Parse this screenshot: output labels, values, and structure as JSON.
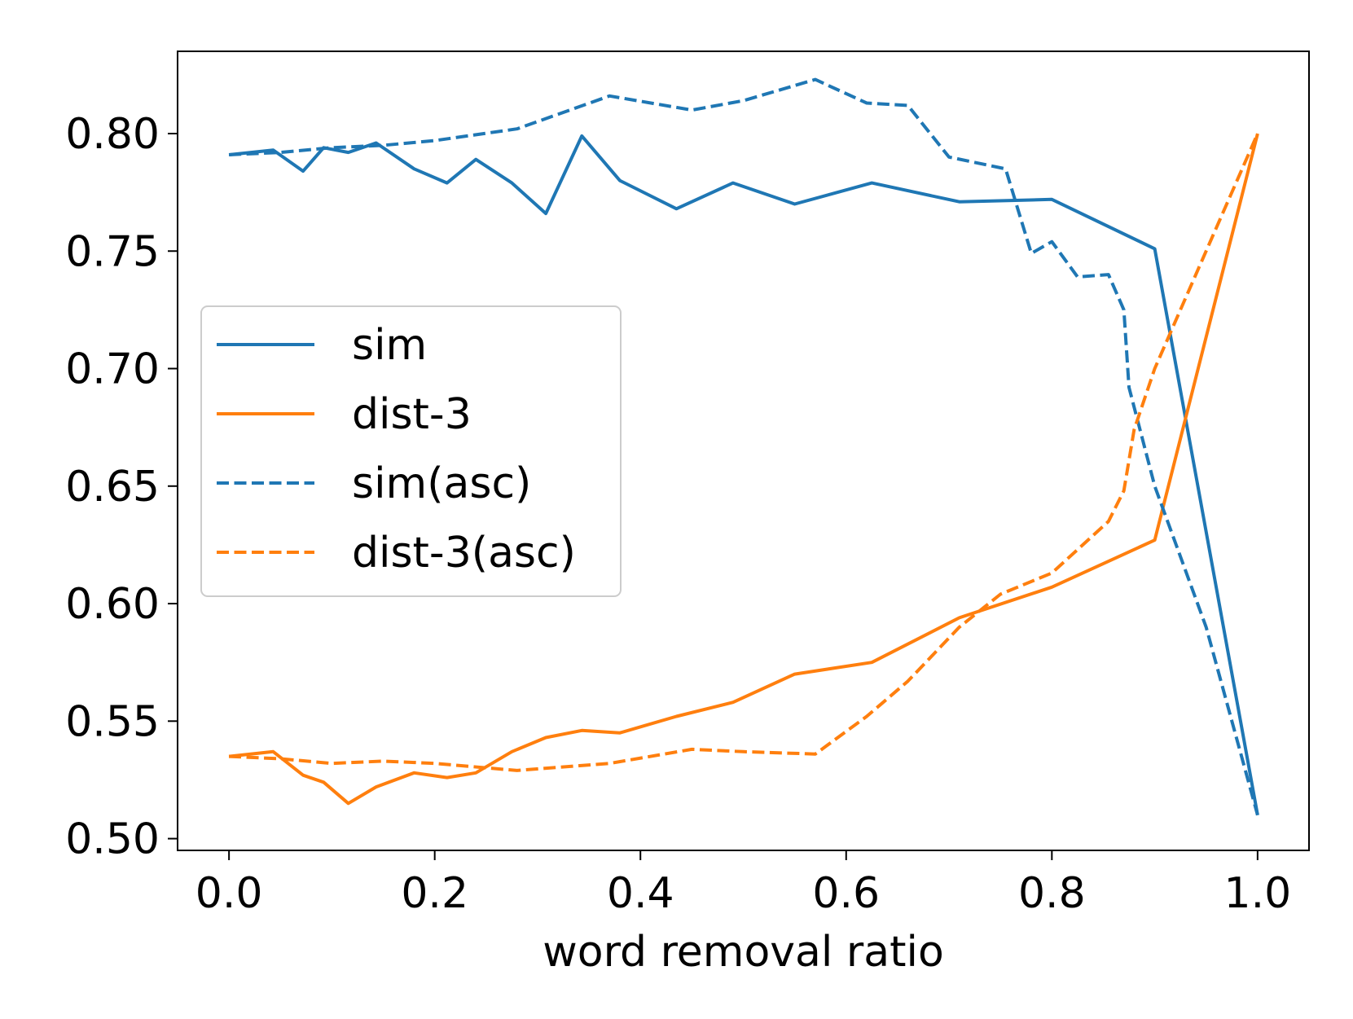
{
  "chart_data": {
    "type": "line",
    "title": "",
    "xlabel": "word removal ratio",
    "ylabel": "",
    "xlim": [
      -0.05,
      1.05
    ],
    "ylim": [
      0.495,
      0.835
    ],
    "x_ticks": [
      "0.0",
      "0.2",
      "0.4",
      "0.6",
      "0.8",
      "1.0"
    ],
    "y_ticks": [
      "0.50",
      "0.55",
      "0.60",
      "0.65",
      "0.70",
      "0.75",
      "0.80"
    ],
    "grid": false,
    "legend_position": "center-left",
    "series": [
      {
        "name": "sim",
        "color": "#1f77b4",
        "dash": "solid",
        "points": [
          [
            0.0,
            0.791
          ],
          [
            0.043,
            0.793
          ],
          [
            0.072,
            0.784
          ],
          [
            0.092,
            0.794
          ],
          [
            0.116,
            0.792
          ],
          [
            0.143,
            0.796
          ],
          [
            0.18,
            0.785
          ],
          [
            0.212,
            0.779
          ],
          [
            0.24,
            0.789
          ],
          [
            0.275,
            0.779
          ],
          [
            0.308,
            0.766
          ],
          [
            0.343,
            0.799
          ],
          [
            0.38,
            0.78
          ],
          [
            0.435,
            0.768
          ],
          [
            0.49,
            0.779
          ],
          [
            0.55,
            0.77
          ],
          [
            0.625,
            0.779
          ],
          [
            0.71,
            0.771
          ],
          [
            0.8,
            0.772
          ],
          [
            0.9,
            0.751
          ],
          [
            1.0,
            0.51
          ]
        ]
      },
      {
        "name": "dist-3",
        "color": "#ff7f0e",
        "dash": "solid",
        "points": [
          [
            0.0,
            0.535
          ],
          [
            0.043,
            0.537
          ],
          [
            0.072,
            0.527
          ],
          [
            0.092,
            0.524
          ],
          [
            0.116,
            0.515
          ],
          [
            0.143,
            0.522
          ],
          [
            0.18,
            0.528
          ],
          [
            0.212,
            0.526
          ],
          [
            0.24,
            0.528
          ],
          [
            0.275,
            0.537
          ],
          [
            0.308,
            0.543
          ],
          [
            0.343,
            0.546
          ],
          [
            0.38,
            0.545
          ],
          [
            0.435,
            0.552
          ],
          [
            0.49,
            0.558
          ],
          [
            0.55,
            0.57
          ],
          [
            0.625,
            0.575
          ],
          [
            0.71,
            0.594
          ],
          [
            0.8,
            0.607
          ],
          [
            0.9,
            0.627
          ],
          [
            1.0,
            0.8
          ]
        ]
      },
      {
        "name": "sim(asc)",
        "color": "#1f77b4",
        "dash": "dashed",
        "points": [
          [
            0.0,
            0.791
          ],
          [
            0.05,
            0.792
          ],
          [
            0.1,
            0.794
          ],
          [
            0.15,
            0.795
          ],
          [
            0.2,
            0.797
          ],
          [
            0.28,
            0.802
          ],
          [
            0.37,
            0.816
          ],
          [
            0.45,
            0.81
          ],
          [
            0.5,
            0.814
          ],
          [
            0.57,
            0.823
          ],
          [
            0.62,
            0.813
          ],
          [
            0.66,
            0.812
          ],
          [
            0.7,
            0.79
          ],
          [
            0.755,
            0.785
          ],
          [
            0.78,
            0.749
          ],
          [
            0.8,
            0.754
          ],
          [
            0.825,
            0.739
          ],
          [
            0.855,
            0.74
          ],
          [
            0.87,
            0.725
          ],
          [
            0.875,
            0.692
          ],
          [
            0.9,
            0.65
          ],
          [
            0.95,
            0.59
          ],
          [
            1.0,
            0.51
          ]
        ]
      },
      {
        "name": "dist-3(asc)",
        "color": "#ff7f0e",
        "dash": "dashed",
        "points": [
          [
            0.0,
            0.535
          ],
          [
            0.05,
            0.534
          ],
          [
            0.1,
            0.532
          ],
          [
            0.15,
            0.533
          ],
          [
            0.2,
            0.532
          ],
          [
            0.28,
            0.529
          ],
          [
            0.37,
            0.532
          ],
          [
            0.45,
            0.538
          ],
          [
            0.5,
            0.537
          ],
          [
            0.57,
            0.536
          ],
          [
            0.62,
            0.552
          ],
          [
            0.66,
            0.567
          ],
          [
            0.71,
            0.59
          ],
          [
            0.75,
            0.604
          ],
          [
            0.8,
            0.613
          ],
          [
            0.855,
            0.635
          ],
          [
            0.87,
            0.648
          ],
          [
            0.88,
            0.674
          ],
          [
            0.9,
            0.7
          ],
          [
            0.95,
            0.75
          ],
          [
            1.0,
            0.8
          ]
        ]
      }
    ]
  }
}
